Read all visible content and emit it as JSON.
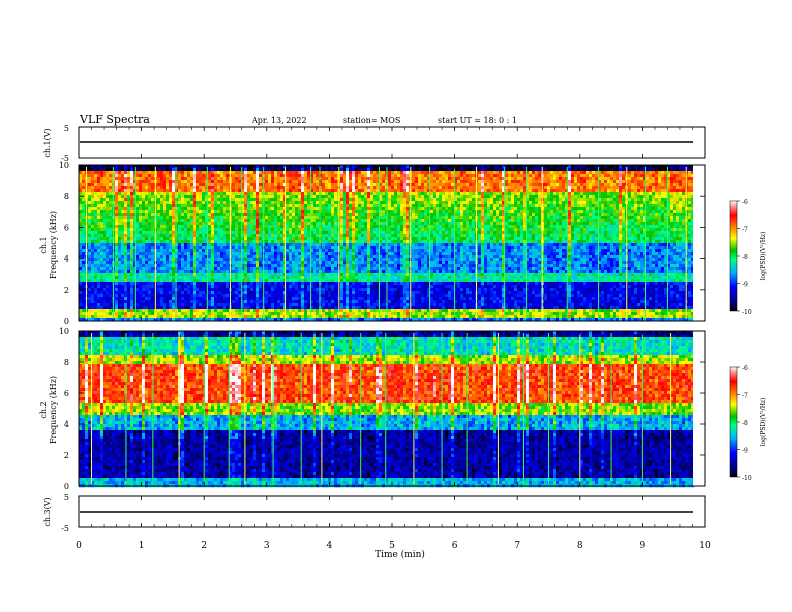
{
  "header": {
    "title": "VLF Spectra",
    "date": "Apr. 13, 2022",
    "station": "station= MOS",
    "start": "start  UT =   18: 0  : 1"
  },
  "chart_data": [
    {
      "type": "line",
      "ylabel": "ch.1(V)",
      "ylim": [
        -5,
        5
      ],
      "ytick_labels": [
        "5",
        "-5"
      ],
      "series": [
        {
          "x": [
            0,
            9.8
          ],
          "values": [
            0,
            0
          ]
        }
      ]
    },
    {
      "type": "heatmap",
      "ylabel": "ch.1\nFrequency (kHz)",
      "ylim": [
        0,
        10
      ],
      "ytick_labels": [
        "0",
        "2",
        "4",
        "6",
        "8",
        "10"
      ],
      "colorbar": {
        "label": "log(PSD)(V²/Hz)",
        "range": [
          -10,
          -6
        ],
        "tick_labels": [
          "-6",
          "-7",
          "-8",
          "-9",
          "-10"
        ]
      },
      "description_bands": [
        {
          "from_khz": 5,
          "to_khz": 9,
          "level": "high"
        },
        {
          "from_khz": 0.3,
          "to_khz": 0.6,
          "level": "high"
        }
      ]
    },
    {
      "type": "heatmap",
      "ylabel": "ch.2\nFrequency (kHz)",
      "ylim": [
        0,
        10
      ],
      "ytick_labels": [
        "0",
        "2",
        "4",
        "6",
        "8",
        "10"
      ],
      "colorbar": {
        "label": "log(PSD)(V²/Hz)",
        "range": [
          -10,
          -6
        ],
        "tick_labels": [
          "-6",
          "-7",
          "-8",
          "-9",
          "-10"
        ]
      },
      "description_bands": [
        {
          "from_khz": 5,
          "to_khz": 8,
          "level": "high"
        }
      ]
    },
    {
      "type": "line",
      "ylabel": "ch.3(V)",
      "ylim": [
        -5,
        5
      ],
      "ytick_labels": [
        "5",
        "-5"
      ],
      "series": [
        {
          "x": [
            0,
            9.8
          ],
          "values": [
            0,
            0
          ]
        }
      ]
    }
  ],
  "xaxis": {
    "label": "Time  (min)",
    "xlim": [
      0,
      10
    ],
    "tick_labels": [
      "0",
      "1",
      "2",
      "3",
      "4",
      "5",
      "6",
      "7",
      "8",
      "9",
      "10"
    ]
  }
}
